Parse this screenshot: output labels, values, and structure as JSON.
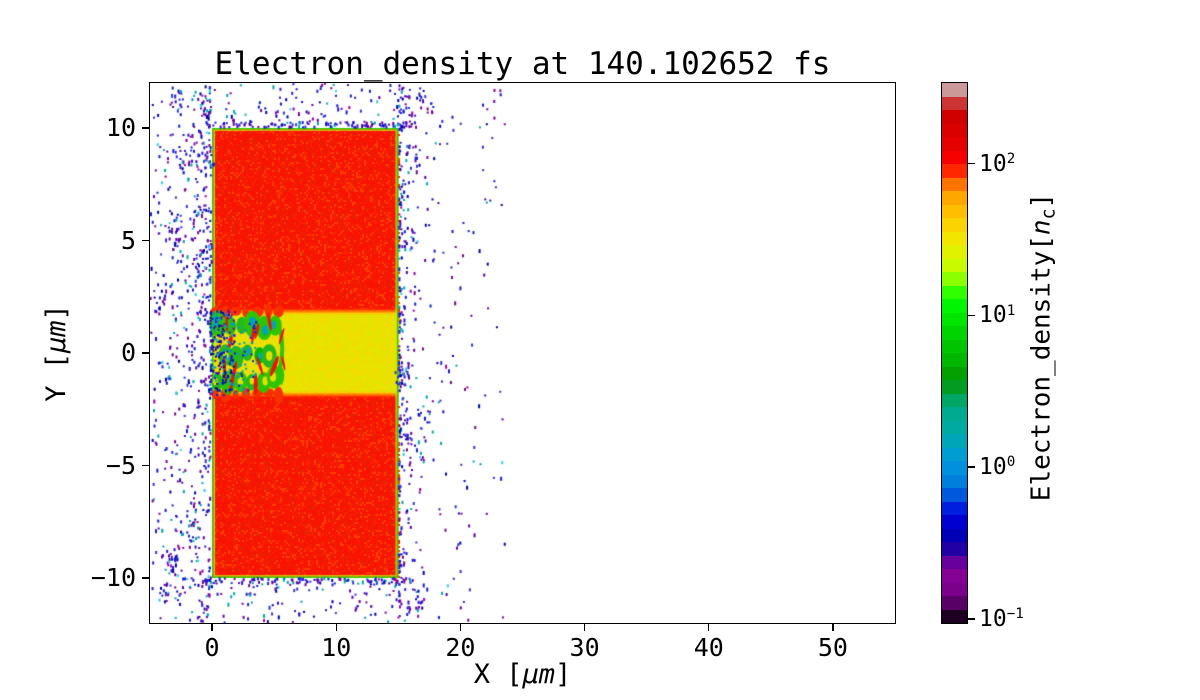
{
  "figure": {
    "background": "#ffffff",
    "text_color": "#000000"
  },
  "chart_data": {
    "type": "heatmap",
    "title": "Electron_density at 140.102652 fs",
    "xlabel": "X [μm]",
    "xlabel_parts": {
      "pre": "X [",
      "unit": "μm",
      "post": "]"
    },
    "ylabel": "Y [μm]",
    "ylabel_parts": {
      "pre": "Y [",
      "unit": "μm",
      "post": "]"
    },
    "xlim": [
      -5,
      55
    ],
    "ylim": [
      -12,
      12
    ],
    "grid": false,
    "x_ticks": [
      {
        "value": 0,
        "label": "0"
      },
      {
        "value": 10,
        "label": "10"
      },
      {
        "value": 20,
        "label": "20"
      },
      {
        "value": 30,
        "label": "30"
      },
      {
        "value": 40,
        "label": "40"
      },
      {
        "value": 50,
        "label": "50"
      }
    ],
    "y_ticks": [
      {
        "value": 10,
        "label": "10"
      },
      {
        "value": 5,
        "label": "5"
      },
      {
        "value": 0,
        "label": "0"
      },
      {
        "value": -5,
        "label": "−5"
      },
      {
        "value": -10,
        "label": "−10"
      }
    ],
    "colorbar": {
      "label": "Electron_density[n_c]",
      "label_parts": {
        "pre": "Electron_density[",
        "sym": "n",
        "sub": "c",
        "post": "]"
      },
      "scale": "log",
      "vmin": 0.094,
      "vmax": 340,
      "colormap": "nipy_spectral",
      "ticks": [
        {
          "value": 100,
          "base": "10",
          "exp": "2"
        },
        {
          "value": 10,
          "base": "10",
          "exp": "1"
        },
        {
          "value": 1,
          "base": "10",
          "exp": "0"
        },
        {
          "value": 0.1,
          "base": "10",
          "exp": "−1"
        }
      ],
      "segment_colors_bottom_to_top": [
        "#1e0022",
        "#590066",
        "#7b008c",
        "#840095",
        "#66009d",
        "#2200a6",
        "#0000b7",
        "#0000d0",
        "#001edd",
        "#0059dd",
        "#007fdd",
        "#0090dd",
        "#009dd0",
        "#00a6b7",
        "#00aaa1",
        "#00aa90",
        "#00a666",
        "#009d22",
        "#00a100",
        "#00b700",
        "#00c400",
        "#00d400",
        "#00e600",
        "#00f600",
        "#2fff00",
        "#8cff00",
        "#c8fb00",
        "#e1f200",
        "#f2e600",
        "#fbd400",
        "#ffbf00",
        "#ffa600",
        "#ff7300",
        "#ff2600",
        "#f60000",
        "#e60000",
        "#d90000",
        "#d00000",
        "#cc3333",
        "#cc9999"
      ]
    },
    "features": {
      "slab": {
        "x": [
          0,
          15
        ],
        "y": [
          -10,
          10
        ],
        "approx_density_nc": 150,
        "base_color": "#f81400",
        "noise_colors": [
          "#ff4000",
          "#e82400",
          "#ff2000"
        ],
        "border_outer_color": "#2bd000",
        "border_inner_color": "#d8e600"
      },
      "channel": {
        "x": [
          0,
          15
        ],
        "y": [
          -1.73,
          1.73
        ],
        "approx_density_nc": 28,
        "base_color": "#eae200",
        "noise_colors": [
          "#f6d900",
          "#dde800"
        ],
        "edge_gradient": [
          "#ff3000",
          "#ff7300",
          "#ffb100",
          "#fcd000"
        ]
      },
      "turbulence": {
        "x": [
          0,
          6.3
        ],
        "y": [
          -2.1,
          2.1
        ],
        "seed": 4242,
        "blob_colors": [
          "#2fc400",
          "#00b700",
          "#27b81e"
        ],
        "hole_colors": [
          "#dfe000",
          "#00a6b7"
        ],
        "filament_color": "#f21000",
        "bulge_color": "#f83000",
        "dot_colors": [
          "#00a6b7",
          "#0090dd",
          "#1a1ad2",
          "#009dd0"
        ],
        "mouth_colors": [
          "#1a1ad2",
          "#0000aa",
          "#7b008c",
          "#00a0b7",
          "#101080"
        ]
      },
      "scatter": {
        "palette": [
          {
            "c": "#1a1ad2",
            "w": 0.28
          },
          {
            "c": "#0000aa",
            "w": 0.14
          },
          {
            "c": "#3333e0",
            "w": 0.1
          },
          {
            "c": "#5a00a8",
            "w": 0.14
          },
          {
            "c": "#7b008c",
            "w": 0.12
          },
          {
            "c": "#9900a8",
            "w": 0.06
          },
          {
            "c": "#00a0b7",
            "w": 0.08
          },
          {
            "c": "#00aaa1",
            "w": 0.05
          },
          {
            "c": "#2fd0e0",
            "w": 0.03
          }
        ],
        "left": {
          "count": 560,
          "clump_count": 14,
          "clump_size": 13,
          "clump_spread": 0.5,
          "x_edge": -0.1,
          "reach": 4.85,
          "power": 1.6,
          "y_min": -11.9,
          "y_max": 11.9,
          "seed": 101
        },
        "right": {
          "count": 430,
          "clump_count": 9,
          "clump_size": 11,
          "clump_spread": 0.55,
          "x_edge": 15.08,
          "reach": 8.6,
          "power": 2.3,
          "y_min": -11.9,
          "y_max": 11.9,
          "seed": 202
        },
        "top": {
          "count": 150,
          "edge_line": 70,
          "x_min": -1.6,
          "x_max": 16.6,
          "y_edge": 10.03,
          "reach": 1.95,
          "power": 2.0,
          "seed": 303
        },
        "bottom": {
          "count": 150,
          "edge_line": 70,
          "x_min": -1.6,
          "x_max": 16.6,
          "y_edge": -10.03,
          "reach": 1.95,
          "power": 2.0,
          "seed": 404
        }
      }
    }
  }
}
